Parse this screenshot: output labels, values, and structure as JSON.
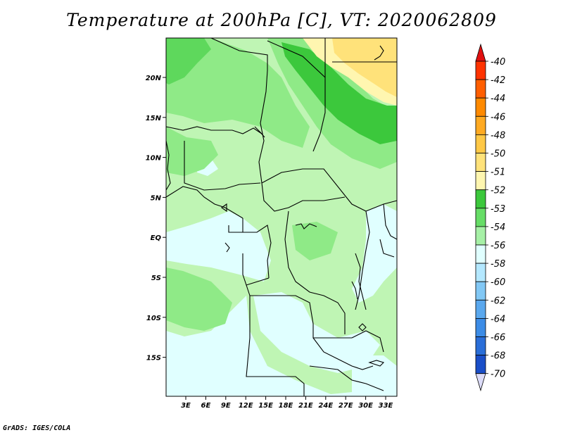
{
  "title": "Temperature at 200hPa [C], VT: 2020062809",
  "credit": "GrADS: IGES/COLA",
  "map": {
    "lon_labels": [
      "3E",
      "6E",
      "9E",
      "12E",
      "15E",
      "18E",
      "21E",
      "24E",
      "27E",
      "30E",
      "33E"
    ],
    "lat_labels": [
      "20N",
      "15N",
      "10N",
      "5N",
      "EQ",
      "5S",
      "10S",
      "15S"
    ]
  },
  "colorbar": {
    "levels": [
      "-40",
      "-42",
      "-44",
      "-46",
      "-48",
      "-50",
      "-51",
      "-52",
      "-53",
      "-54",
      "-56",
      "-58",
      "-60",
      "-62",
      "-64",
      "-66",
      "-68",
      "-70"
    ],
    "colors": [
      "#ff3300",
      "#ff5e00",
      "#ff8a00",
      "#ffaa22",
      "#ffc846",
      "#ffe27a",
      "#fff6b0",
      "#3cc83c",
      "#66dd66",
      "#a6f0a6",
      "#e0ffff",
      "#b4e8ff",
      "#82c8f5",
      "#5aa8ee",
      "#3c8ce6",
      "#2a6ed8",
      "#1a4ec8",
      "#0a2ea8"
    ],
    "top_color": "#e01010",
    "bottom_color": "#dcdcf8"
  },
  "colors": {
    "light_cyan": "#e0ffff",
    "pale_green": "#bff5b4",
    "light_green": "#8fea87",
    "mid_green": "#5ed85c",
    "dark_green": "#3cc83c",
    "pale_yellow": "#fff6b0",
    "yellow": "#ffe27a"
  }
}
